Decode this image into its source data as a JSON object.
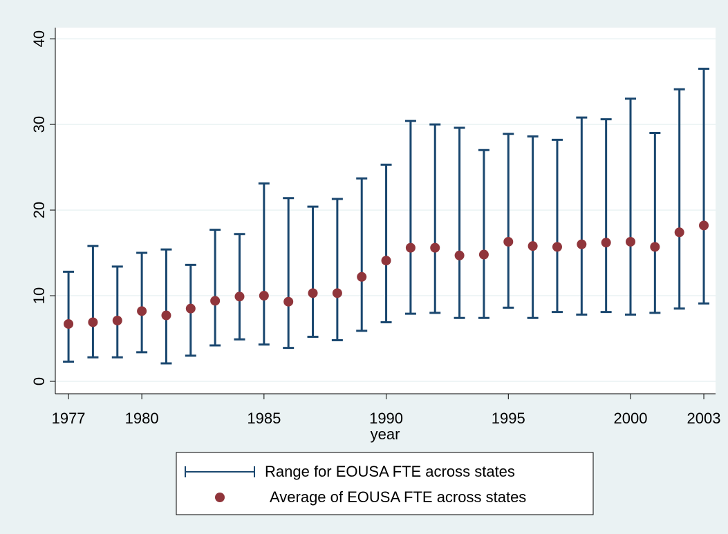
{
  "chart_data": {
    "type": "rangecap_scatter",
    "xlabel": "year",
    "x": [
      1977,
      1978,
      1979,
      1980,
      1981,
      1982,
      1983,
      1984,
      1985,
      1986,
      1987,
      1988,
      1989,
      1990,
      1991,
      1992,
      1993,
      1994,
      1995,
      1996,
      1997,
      1998,
      1999,
      2000,
      2001,
      2002,
      2003
    ],
    "series": [
      {
        "name": "Range for EOUSA FTE across states",
        "color": "#1a476f",
        "low": [
          2.3,
          2.8,
          2.8,
          3.4,
          2.1,
          3.0,
          4.2,
          4.9,
          4.3,
          3.9,
          5.2,
          4.8,
          5.9,
          6.9,
          7.9,
          8.0,
          7.4,
          7.4,
          8.6,
          7.4,
          8.1,
          7.8,
          8.1,
          7.8,
          8.0,
          8.5,
          9.1
        ],
        "high": [
          12.8,
          15.8,
          13.4,
          15.0,
          15.4,
          13.6,
          17.7,
          17.2,
          23.1,
          21.4,
          20.4,
          21.3,
          23.7,
          25.3,
          30.4,
          30.0,
          29.6,
          27.0,
          28.9,
          28.6,
          28.2,
          30.8,
          30.6,
          33.0,
          29.0,
          34.1,
          36.5
        ]
      },
      {
        "name": "Average of EOUSA FTE across states",
        "color": "#90353b",
        "values": [
          6.7,
          6.9,
          7.1,
          8.2,
          7.7,
          8.5,
          9.4,
          9.9,
          10.0,
          9.3,
          10.3,
          10.3,
          12.2,
          14.1,
          15.6,
          15.6,
          14.7,
          14.8,
          16.3,
          15.8,
          15.7,
          16.0,
          16.2,
          16.3,
          15.7,
          17.4,
          18.2
        ]
      }
    ],
    "xlim": [
      1976.46,
      2003.48
    ],
    "xticks": [
      1977,
      1980,
      1985,
      1990,
      1995,
      2000,
      2003
    ],
    "ylim": [
      -1.45,
      41.3
    ],
    "yticks": [
      0,
      10,
      20,
      30,
      40
    ],
    "grid": true
  }
}
